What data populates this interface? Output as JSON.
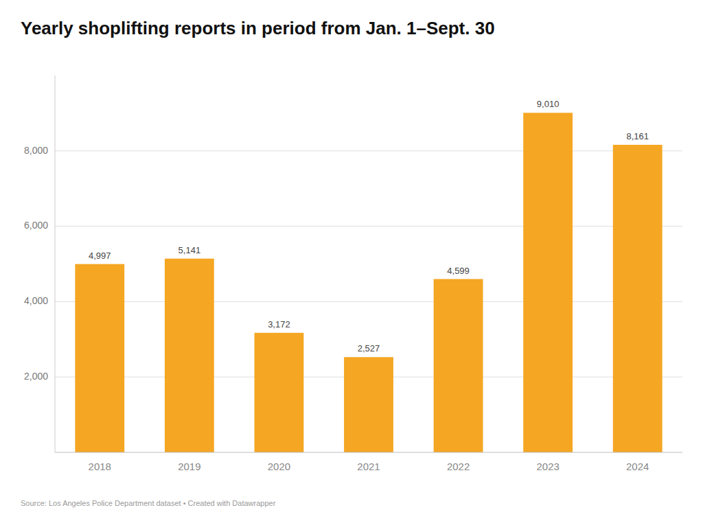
{
  "chart_data": {
    "type": "bar",
    "title": "Yearly shoplifting reports in period from Jan. 1–Sept. 30",
    "categories": [
      "2018",
      "2019",
      "2020",
      "2021",
      "2022",
      "2023",
      "2024"
    ],
    "values": [
      4997,
      5141,
      3172,
      2527,
      4599,
      9010,
      8161
    ],
    "value_labels": [
      "4,997",
      "5,141",
      "3,172",
      "2,527",
      "4,599",
      "9,010",
      "8,161"
    ],
    "color": "#F5A623",
    "ylim": [
      0,
      10000
    ],
    "yticks": [
      {
        "value": 2000,
        "label": "2,000"
      },
      {
        "value": 4000,
        "label": "4,000"
      },
      {
        "value": 6000,
        "label": "6,000"
      },
      {
        "value": 8000,
        "label": "8,000"
      }
    ],
    "grid": true,
    "data_labels": true,
    "annotations": [
      "Source: Los Angeles Police Department dataset • Created with Datawrapper"
    ]
  }
}
